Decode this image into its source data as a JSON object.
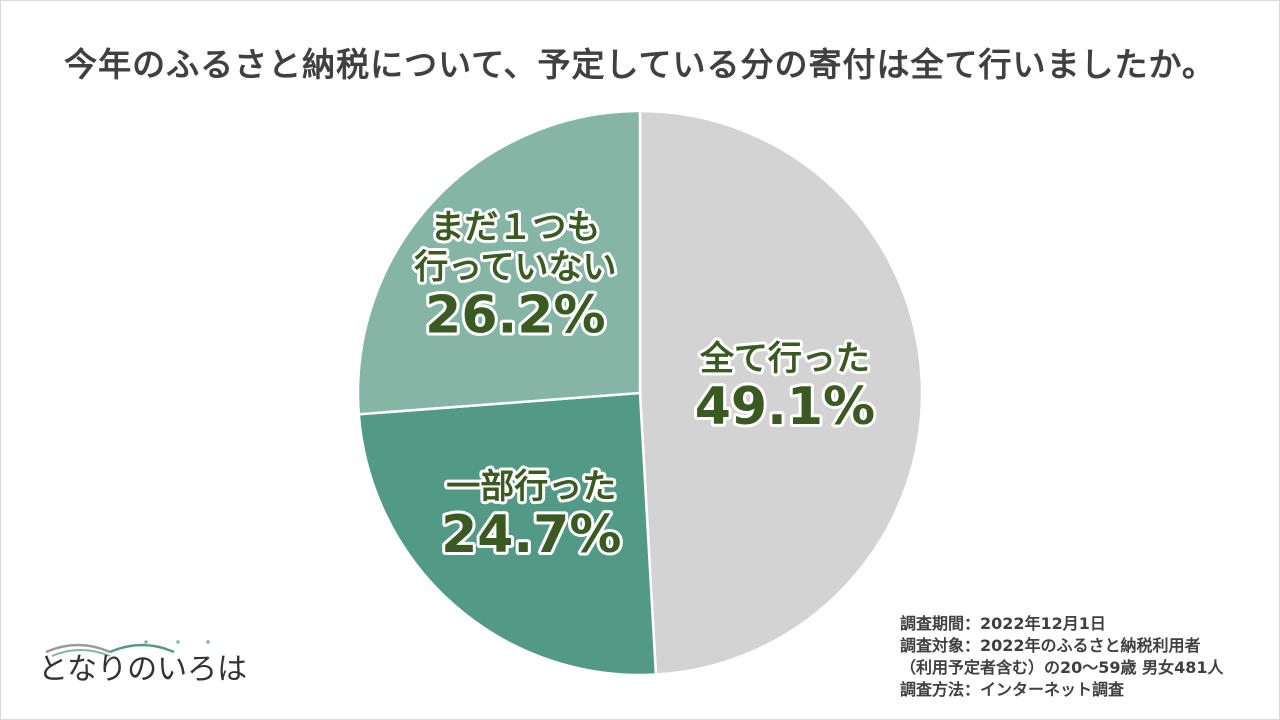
{
  "title": "今年のふるさと納税について、予定している分の寄付は全て行いましたか。",
  "chart_data": {
    "type": "pie",
    "title": "今年のふるさと納税について、予定している分の寄付は全て行いましたか。",
    "slices": [
      {
        "name_lines": [
          "全て行った"
        ],
        "value": 49.1,
        "pct_label": "49.1%",
        "color": "#d3d3d3"
      },
      {
        "name_lines": [
          "一部行った"
        ],
        "value": 24.7,
        "pct_label": "24.7%",
        "color": "#529a85"
      },
      {
        "name_lines": [
          "まだ１つも",
          "行っていない"
        ],
        "value": 26.2,
        "pct_label": "26.2%",
        "color": "#84b5a5"
      }
    ]
  },
  "notes": {
    "period": "調査期間：2022年12月1日",
    "target_line1": "調査対象：2022年のふるさと納税利用者",
    "target_line2": "（利用予定者含む）の20～59歳 男女481人",
    "method": "調査方法：インターネット調査"
  },
  "logo": {
    "text": "となりのいろは",
    "accent_color": "#529a85"
  }
}
